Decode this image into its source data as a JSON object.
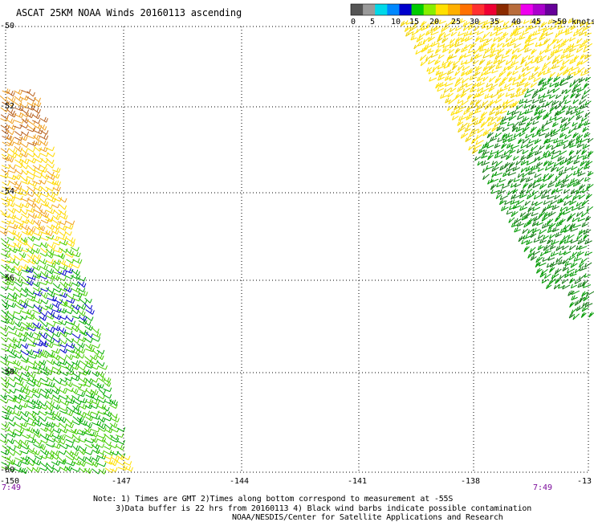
{
  "title": "ASCAT 25KM NOAA Winds 20160113 ascending",
  "legend": {
    "colors": [
      "#555555",
      "#9a9a9a",
      "#00d8e8",
      "#0088ff",
      "#0000cc",
      "#00cc00",
      "#88ee00",
      "#ffe000",
      "#ffb000",
      "#ff7000",
      "#ff3030",
      "#ee0033",
      "#8a2a00",
      "#b86c3c",
      "#ee00ee",
      "#aa00cc",
      "#660099"
    ],
    "labels": [
      "0",
      "5",
      "10",
      "15",
      "20",
      "25",
      "30",
      "35",
      "40",
      "45",
      ">50 knots"
    ]
  },
  "axes": {
    "lat_labels": [
      "-50",
      "-52",
      "-54",
      "-56",
      "-58",
      "-60"
    ],
    "lon_labels": [
      "-150",
      "-147",
      "-144",
      "-141",
      "-138",
      "-13"
    ]
  },
  "times": {
    "left": "7:49",
    "right": "7:49"
  },
  "notes": {
    "line1": "Note: 1) Times are GMT 2)Times along bottom correspond to measurement at -55S",
    "line2": "3)Data buffer is 22 hrs from 20160113 4) Black wind barbs indicate possible contamination",
    "line3": "NOAA/NESDIS/Center for Satellite Applications and Research"
  },
  "swaths": [
    {
      "name": "west-swath",
      "speed_colors": [
        "#b8601e",
        "#f0a020",
        "#ffe000",
        "#00aa00",
        "#44cc00",
        "#0000cc"
      ]
    },
    {
      "name": "east-swath",
      "speed_colors": [
        "#ffe000",
        "#eed000",
        "#009900",
        "#117711"
      ]
    }
  ]
}
